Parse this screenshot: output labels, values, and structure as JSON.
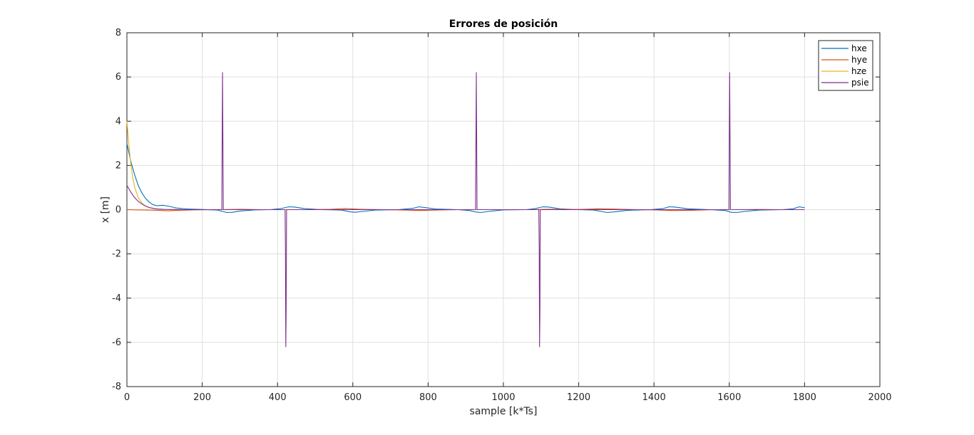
{
  "chart_data": {
    "type": "line",
    "title": "Errores de posición",
    "xlabel": "sample [k*Ts]",
    "ylabel": "x [m]",
    "xlim": [
      0,
      2000
    ],
    "ylim": [
      -8,
      8
    ],
    "xticks": [
      0,
      200,
      400,
      600,
      800,
      1000,
      1200,
      1400,
      1600,
      1800,
      2000
    ],
    "yticks": [
      -8,
      -6,
      -4,
      -2,
      0,
      2,
      4,
      6,
      8
    ],
    "grid": true,
    "legend_position": "top-right",
    "series": [
      {
        "name": "hxe",
        "color": "#0072BD",
        "points": [
          [
            0,
            3.0
          ],
          [
            10,
            2.2
          ],
          [
            20,
            1.6
          ],
          [
            30,
            1.1
          ],
          [
            40,
            0.75
          ],
          [
            50,
            0.5
          ],
          [
            60,
            0.33
          ],
          [
            70,
            0.22
          ],
          [
            80,
            0.18
          ],
          [
            95,
            0.2
          ],
          [
            110,
            0.16
          ],
          [
            130,
            0.08
          ],
          [
            160,
            0.03
          ],
          [
            200,
            0.01
          ],
          [
            240,
            -0.02
          ],
          [
            255,
            -0.08
          ],
          [
            265,
            -0.13
          ],
          [
            280,
            -0.12
          ],
          [
            300,
            -0.06
          ],
          [
            340,
            -0.01
          ],
          [
            380,
            0.0
          ],
          [
            410,
            0.05
          ],
          [
            430,
            0.13
          ],
          [
            445,
            0.12
          ],
          [
            470,
            0.05
          ],
          [
            520,
            0.0
          ],
          [
            570,
            -0.02
          ],
          [
            590,
            -0.09
          ],
          [
            605,
            -0.12
          ],
          [
            625,
            -0.08
          ],
          [
            660,
            -0.02
          ],
          [
            720,
            0.0
          ],
          [
            760,
            0.06
          ],
          [
            775,
            0.13
          ],
          [
            790,
            0.1
          ],
          [
            820,
            0.03
          ],
          [
            880,
            0.0
          ],
          [
            910,
            -0.04
          ],
          [
            925,
            -0.1
          ],
          [
            940,
            -0.13
          ],
          [
            960,
            -0.08
          ],
          [
            1000,
            -0.01
          ],
          [
            1060,
            0.0
          ],
          [
            1085,
            0.05
          ],
          [
            1105,
            0.13
          ],
          [
            1120,
            0.12
          ],
          [
            1150,
            0.04
          ],
          [
            1200,
            0.0
          ],
          [
            1240,
            -0.02
          ],
          [
            1260,
            -0.08
          ],
          [
            1275,
            -0.13
          ],
          [
            1295,
            -0.1
          ],
          [
            1330,
            -0.03
          ],
          [
            1390,
            0.0
          ],
          [
            1425,
            0.05
          ],
          [
            1440,
            0.13
          ],
          [
            1455,
            0.12
          ],
          [
            1490,
            0.04
          ],
          [
            1550,
            0.0
          ],
          [
            1590,
            -0.04
          ],
          [
            1605,
            -0.12
          ],
          [
            1620,
            -0.13
          ],
          [
            1640,
            -0.08
          ],
          [
            1680,
            -0.02
          ],
          [
            1740,
            0.0
          ],
          [
            1770,
            0.04
          ],
          [
            1785,
            0.13
          ],
          [
            1800,
            0.09
          ]
        ]
      },
      {
        "name": "hye",
        "color": "#D95319",
        "points": [
          [
            0,
            0.0
          ],
          [
            30,
            -0.01
          ],
          [
            60,
            -0.02
          ],
          [
            90,
            -0.04
          ],
          [
            110,
            -0.05
          ],
          [
            140,
            -0.03
          ],
          [
            180,
            -0.01
          ],
          [
            240,
            0.0
          ],
          [
            300,
            0.02
          ],
          [
            360,
            0.0
          ],
          [
            420,
            0.0
          ],
          [
            480,
            0.0
          ],
          [
            540,
            0.02
          ],
          [
            580,
            0.05
          ],
          [
            620,
            0.02
          ],
          [
            680,
            0.0
          ],
          [
            740,
            -0.02
          ],
          [
            780,
            -0.04
          ],
          [
            820,
            -0.02
          ],
          [
            880,
            0.0
          ],
          [
            940,
            0.0
          ],
          [
            1000,
            0.0
          ],
          [
            1060,
            0.0
          ],
          [
            1120,
            0.02
          ],
          [
            1200,
            0.01
          ],
          [
            1250,
            0.04
          ],
          [
            1290,
            0.03
          ],
          [
            1350,
            0.0
          ],
          [
            1400,
            -0.01
          ],
          [
            1450,
            -0.04
          ],
          [
            1500,
            -0.03
          ],
          [
            1560,
            0.0
          ],
          [
            1620,
            0.0
          ],
          [
            1680,
            0.01
          ],
          [
            1740,
            0.0
          ],
          [
            1800,
            0.0
          ]
        ]
      },
      {
        "name": "hze",
        "color": "#EDB120",
        "points": [
          [
            0,
            4.0
          ],
          [
            5,
            3.0
          ],
          [
            10,
            2.1
          ],
          [
            15,
            1.5
          ],
          [
            20,
            1.05
          ],
          [
            30,
            0.55
          ],
          [
            40,
            0.3
          ],
          [
            50,
            0.15
          ],
          [
            70,
            0.05
          ],
          [
            100,
            0.01
          ],
          [
            150,
            0.0
          ],
          [
            300,
            0.0
          ],
          [
            600,
            0.0
          ],
          [
            900,
            0.0
          ],
          [
            1200,
            0.0
          ],
          [
            1500,
            0.0
          ],
          [
            1800,
            0.0
          ]
        ]
      },
      {
        "name": "psie",
        "color": "#7E2F8E",
        "points": [
          [
            0,
            1.1
          ],
          [
            10,
            0.8
          ],
          [
            20,
            0.55
          ],
          [
            30,
            0.38
          ],
          [
            40,
            0.25
          ],
          [
            50,
            0.16
          ],
          [
            60,
            0.09
          ],
          [
            80,
            0.03
          ],
          [
            100,
            0.01
          ],
          [
            150,
            0.0
          ],
          [
            252,
            0.0
          ],
          [
            253,
            3.4
          ],
          [
            254,
            6.2
          ],
          [
            255,
            3.3
          ],
          [
            256,
            0.0
          ],
          [
            420,
            0.0
          ],
          [
            421,
            -1.8
          ],
          [
            422,
            -6.2
          ],
          [
            423,
            -4.7
          ],
          [
            424,
            0.0
          ],
          [
            926,
            0.0
          ],
          [
            927,
            3.2
          ],
          [
            928,
            6.2
          ],
          [
            929,
            3.3
          ],
          [
            930,
            0.0
          ],
          [
            1094,
            0.0
          ],
          [
            1095,
            -1.7
          ],
          [
            1096,
            -6.2
          ],
          [
            1097,
            -4.7
          ],
          [
            1098,
            0.0
          ],
          [
            1599,
            0.0
          ],
          [
            1600,
            3.5
          ],
          [
            1601,
            6.2
          ],
          [
            1602,
            3.0
          ],
          [
            1603,
            0.0
          ],
          [
            1800,
            0.0
          ]
        ]
      }
    ]
  }
}
